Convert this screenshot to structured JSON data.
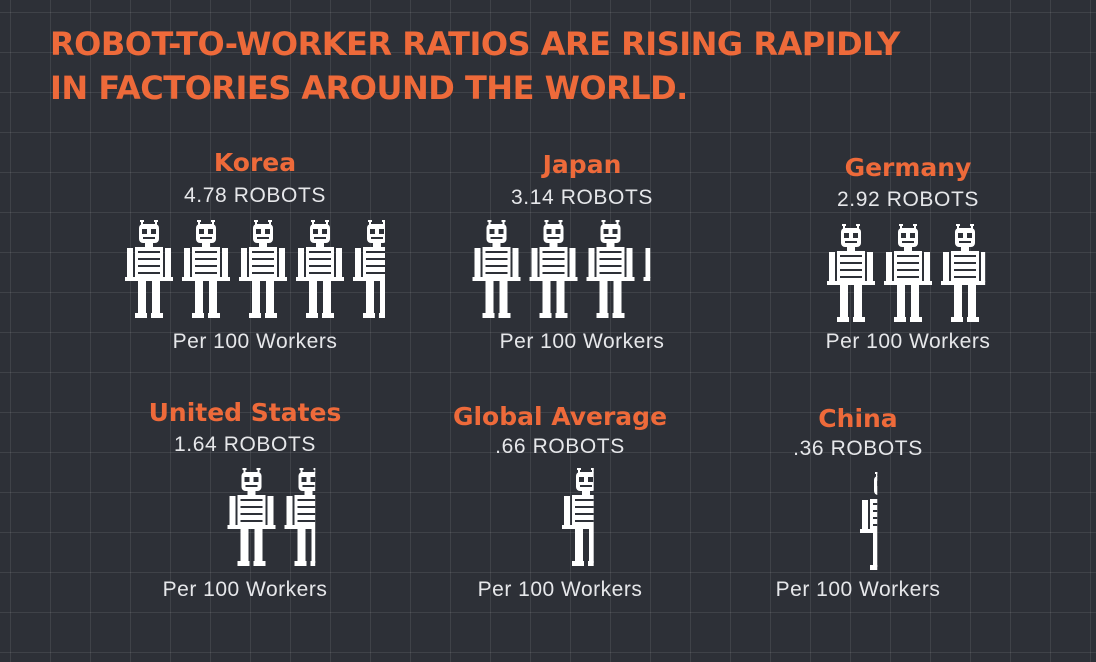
{
  "header": {
    "title_line1": "ROBOT-TO-WORKER RATIOS ARE RISING RAPIDLY",
    "title_line2": "IN FACTORIES AROUND THE WORLD."
  },
  "colors": {
    "background": "#2d3037",
    "accent": "#ee6a3a",
    "text": "#e6e7ea",
    "robot": "#ffffff"
  },
  "chart_data": {
    "type": "pictogram",
    "unit_icon": "robot-icon",
    "caption": "Per 100 Workers",
    "series": [
      {
        "name": "Korea",
        "value": 4.78,
        "value_label": "4.78 ROBOTS",
        "caption": "Per 100 Workers"
      },
      {
        "name": "Japan",
        "value": 3.14,
        "value_label": "3.14 ROBOTS",
        "caption": "Per 100 Workers"
      },
      {
        "name": "Germany",
        "value": 2.92,
        "value_label": "2.92 ROBOTS",
        "caption": "Per 100 Workers"
      },
      {
        "name": "United States",
        "value": 1.64,
        "value_label": "1.64 ROBOTS",
        "caption": "Per 100 Workers"
      },
      {
        "name": "Global Average",
        "value": 0.66,
        "value_label": ".66 ROBOTS",
        "caption": "Per 100 Workers"
      },
      {
        "name": "China",
        "value": 0.36,
        "value_label": ".36 ROBOTS",
        "caption": "Per 100 Workers"
      }
    ]
  }
}
